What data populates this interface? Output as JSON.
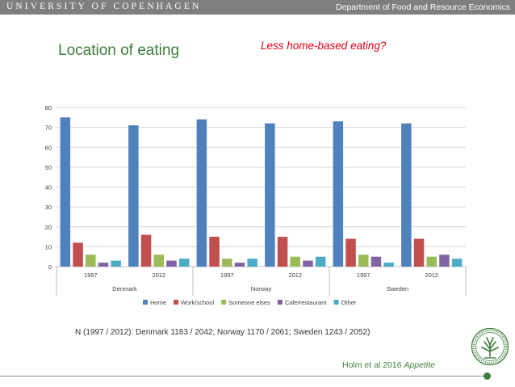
{
  "header": {
    "university": "UNIVERSITY OF COPENHAGEN",
    "department": "Department of Food and Resource Economics"
  },
  "slide": {
    "title": "Location of eating",
    "subtitle": "Less home-based eating?",
    "note": "N (1997 / 2012): Denmark 1183 / 2042; Norway 1170 / 2061; Sweden 1243 / 2052)",
    "reference_authors": "Holm et al 2016",
    "reference_journal": "Appetite"
  },
  "chart_data": {
    "type": "bar",
    "groups": [
      {
        "country": "Denmark",
        "years": [
          "1997",
          "2012"
        ]
      },
      {
        "country": "Norway",
        "years": [
          "1997",
          "2012"
        ]
      },
      {
        "country": "Sweden",
        "years": [
          "1997",
          "2012"
        ]
      }
    ],
    "categories": [
      "1997",
      "2012",
      "1997",
      "2012",
      "1997",
      "2012"
    ],
    "series": [
      {
        "name": "Home",
        "color": "#4f81bd",
        "values": [
          75,
          71,
          74,
          72,
          73,
          72
        ]
      },
      {
        "name": "Work/school",
        "color": "#c0504d",
        "values": [
          12,
          16,
          15,
          15,
          14,
          14
        ]
      },
      {
        "name": "Someone elses",
        "color": "#9bbb59",
        "values": [
          6,
          6,
          4,
          5,
          6,
          5
        ]
      },
      {
        "name": "Cafe/restaurant",
        "color": "#8064a2",
        "values": [
          2,
          3,
          2,
          3,
          5,
          6
        ]
      },
      {
        "name": "Other",
        "color": "#4bacc6",
        "values": [
          3,
          4,
          4,
          5,
          2,
          4
        ]
      }
    ],
    "ylim": [
      0,
      80
    ],
    "yticks": [
      0,
      10,
      20,
      30,
      40,
      50,
      60,
      70,
      80
    ],
    "grid": true,
    "legend": "bottom"
  },
  "colors": {
    "accent": "#3d7e3a",
    "subtitle": "#e2001a",
    "topbar": "#7f7f7f"
  }
}
